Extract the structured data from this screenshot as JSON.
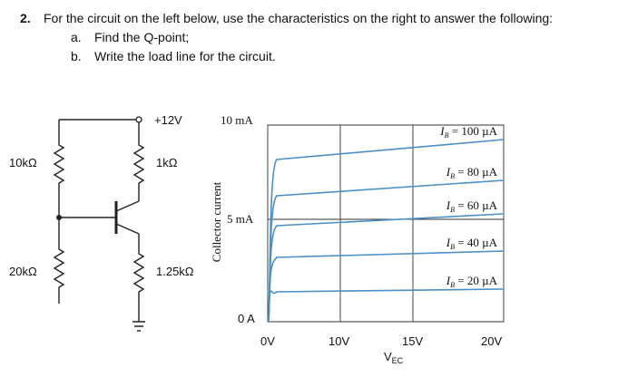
{
  "question": {
    "number": "2.",
    "text": "For the circuit on the left below, use the characteristics on the right to answer the following:",
    "items": [
      {
        "label": "a.",
        "text": "Find the Q-point;"
      },
      {
        "label": "b.",
        "text": "Write the load line for the circuit."
      }
    ]
  },
  "circuit": {
    "supply": "+12V",
    "r1": "10kΩ",
    "rc": "1kΩ",
    "r2": "20kΩ",
    "re": "1.25kΩ"
  },
  "characteristics": {
    "y_label": "Collector current",
    "y_ticks": [
      "10 mA",
      "5 mA",
      "0 A"
    ],
    "x_ticks": [
      "0V",
      "10V",
      "15V",
      "20V"
    ],
    "x_label": {
      "main": "V",
      "sub": "EC"
    },
    "curves": [
      {
        "main": "I",
        "sub": "B",
        "value": " = 100 µA"
      },
      {
        "main": "I",
        "sub": "B",
        "value": " = 80 µA"
      },
      {
        "main": "I",
        "sub": "B",
        "value": " = 60 µA"
      },
      {
        "main": "I",
        "sub": "B",
        "value": " = 40 µA"
      },
      {
        "main": "I",
        "sub": "B",
        "value": " = 20 µA"
      }
    ]
  }
}
